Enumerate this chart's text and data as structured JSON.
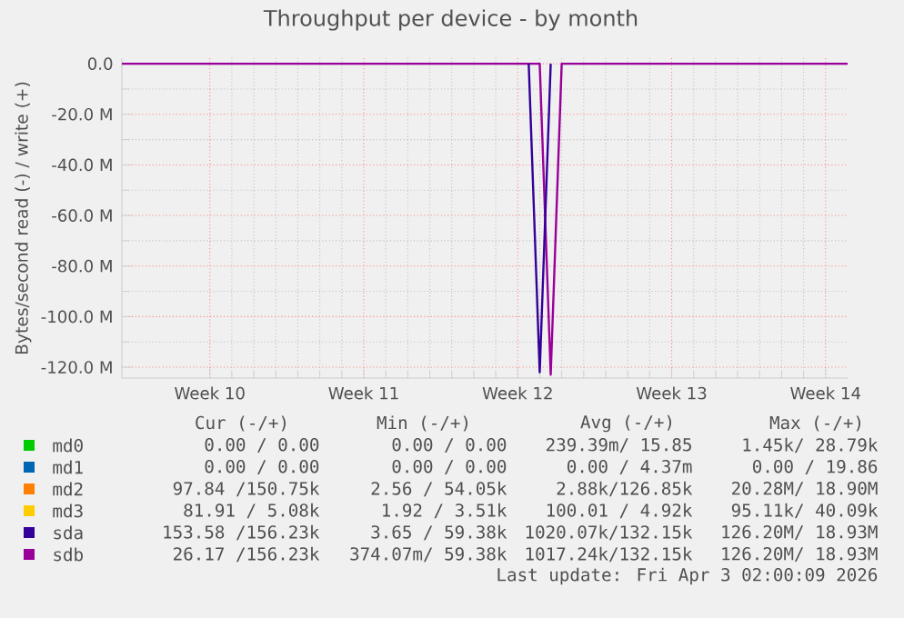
{
  "chart_data": {
    "type": "line",
    "title": "Throughput per device - by month",
    "ylabel": "Bytes/second read (-) / write (+)",
    "categories": [
      null,
      null,
      null,
      null,
      null,
      null,
      null,
      null,
      "Week 10",
      null,
      null,
      null,
      null,
      null,
      null,
      null,
      null,
      null,
      null,
      null,
      null,
      null,
      "Week 11",
      null,
      null,
      null,
      null,
      null,
      null,
      null,
      null,
      null,
      null,
      null,
      null,
      null,
      "Week 12",
      null,
      null,
      null,
      null,
      null,
      null,
      null,
      null,
      null,
      null,
      null,
      null,
      null,
      "Week 13",
      null,
      null,
      null,
      null,
      null,
      null,
      null,
      null,
      null,
      null,
      null,
      null,
      null,
      "Week 14",
      null,
      null
    ],
    "ylim": [
      -124.3,
      2.2
    ],
    "yticks": [
      {
        "value": 0,
        "label": "0.0"
      },
      {
        "value": -20,
        "label": "-20.0 M"
      },
      {
        "value": -40,
        "label": "-40.0 M"
      },
      {
        "value": -60,
        "label": "-60.0 M"
      },
      {
        "value": -80,
        "label": "-80.0 M"
      },
      {
        "value": -100,
        "label": "-100.0 M"
      },
      {
        "value": -120,
        "label": "-120.0 M"
      }
    ],
    "grid": true,
    "legend": "bottom",
    "marker": "none",
    "line_style": "solid",
    "series": [
      {
        "name": "md0",
        "color": "#00cc00",
        "values": [
          null,
          null,
          null,
          null,
          null,
          null,
          null,
          null,
          null,
          null,
          null,
          null,
          null,
          null,
          null,
          null,
          null,
          null,
          null,
          null,
          null,
          null,
          null,
          null,
          null,
          null,
          null,
          null,
          null,
          null,
          null,
          null,
          null,
          null,
          null,
          null,
          null,
          null,
          null,
          null,
          null,
          null,
          null,
          null,
          null,
          null,
          null,
          null,
          null,
          null,
          null,
          null,
          null,
          null,
          null,
          null,
          null,
          null,
          null,
          null,
          null,
          null,
          null,
          null,
          null,
          null,
          null
        ]
      },
      {
        "name": "md1",
        "color": "#0066b3",
        "values": [
          null,
          null,
          null,
          null,
          null,
          null,
          null,
          null,
          null,
          null,
          null,
          null,
          null,
          null,
          null,
          null,
          null,
          null,
          null,
          null,
          null,
          null,
          null,
          null,
          null,
          null,
          null,
          null,
          null,
          null,
          null,
          null,
          null,
          null,
          null,
          null,
          null,
          null,
          null,
          null,
          null,
          null,
          null,
          null,
          null,
          null,
          null,
          null,
          null,
          null,
          null,
          null,
          null,
          null,
          null,
          null,
          null,
          null,
          null,
          null,
          null,
          null,
          null,
          null,
          null,
          null,
          null
        ]
      },
      {
        "name": "md2",
        "color": "#ff8000",
        "values": [
          null,
          null,
          null,
          null,
          null,
          null,
          null,
          null,
          null,
          null,
          null,
          null,
          null,
          null,
          null,
          null,
          null,
          null,
          null,
          null,
          null,
          null,
          null,
          null,
          null,
          null,
          null,
          null,
          null,
          null,
          null,
          null,
          null,
          null,
          null,
          null,
          null,
          null,
          null,
          null,
          null,
          null,
          null,
          null,
          null,
          null,
          null,
          null,
          null,
          null,
          null,
          null,
          null,
          null,
          null,
          null,
          null,
          null,
          null,
          null,
          null,
          null,
          null,
          null,
          null,
          null,
          null
        ]
      },
      {
        "name": "md3",
        "color": "#ffcc00",
        "values": [
          null,
          null,
          null,
          null,
          null,
          null,
          null,
          null,
          null,
          null,
          null,
          null,
          null,
          null,
          null,
          null,
          null,
          null,
          null,
          null,
          null,
          null,
          null,
          null,
          null,
          null,
          null,
          null,
          null,
          null,
          null,
          null,
          null,
          null,
          null,
          null,
          null,
          null,
          null,
          null,
          null,
          null,
          null,
          null,
          null,
          null,
          null,
          null,
          null,
          null,
          null,
          null,
          null,
          null,
          null,
          null,
          null,
          null,
          null,
          null,
          null,
          null,
          null,
          null,
          null,
          null,
          null
        ]
      },
      {
        "name": "sda",
        "color": "#330099",
        "values": [
          null,
          null,
          null,
          null,
          null,
          null,
          null,
          null,
          null,
          null,
          null,
          null,
          null,
          null,
          null,
          null,
          null,
          null,
          null,
          null,
          null,
          null,
          null,
          null,
          null,
          null,
          null,
          null,
          null,
          null,
          null,
          null,
          null,
          null,
          null,
          null,
          null,
          0,
          -122,
          0,
          null,
          null,
          null,
          null,
          null,
          null,
          null,
          null,
          null,
          null,
          null,
          null,
          null,
          null,
          null,
          null,
          null,
          null,
          null,
          null,
          null,
          null,
          null,
          null,
          null,
          null,
          null
        ]
      },
      {
        "name": "sdb",
        "color": "#990099",
        "values": [
          0,
          0,
          0,
          0,
          0,
          0,
          0,
          0,
          0,
          0,
          0,
          0,
          0,
          0,
          0,
          0,
          0,
          0,
          0,
          0,
          0,
          0,
          0,
          0,
          0,
          0,
          0,
          0,
          0,
          0,
          0,
          0,
          0,
          0,
          0,
          0,
          0,
          0,
          0,
          -123,
          0,
          0,
          0,
          0,
          0,
          0,
          0,
          0,
          0,
          0,
          0,
          0,
          0,
          0,
          0,
          0,
          0,
          0,
          0,
          0,
          0,
          0,
          0,
          0,
          0,
          0,
          0
        ]
      }
    ],
    "annotations": [
      "Cur (-/+)",
      "Min (-/+)",
      "Avg (-/+)",
      "Max (-/+)",
      "0.00 /  0.00",
      "0.00 /  0.00",
      "239.39m/ 15.85",
      "1.45k/ 28.79k",
      "0.00 /  0.00",
      "0.00 /  0.00",
      "0.00 /  4.37m",
      "0.00 / 19.86",
      "97.84 /150.75k",
      "2.56 / 54.05k",
      "2.88k/126.85k",
      "20.28M/ 18.90M",
      "81.91 /  5.08k",
      "1.92 /  3.51k",
      "100.01 /  4.92k",
      "95.11k/ 40.09k",
      "153.58 /156.23k",
      "3.65 / 59.38k",
      "1020.07k/132.15k",
      "126.20M/ 18.93M",
      "26.17 /156.23k",
      "374.07m/ 59.38k",
      "1017.24k/132.15k",
      "126.20M/ 18.93M",
      "Last update: Fri Apr  3 02:00:09 2026"
    ]
  }
}
